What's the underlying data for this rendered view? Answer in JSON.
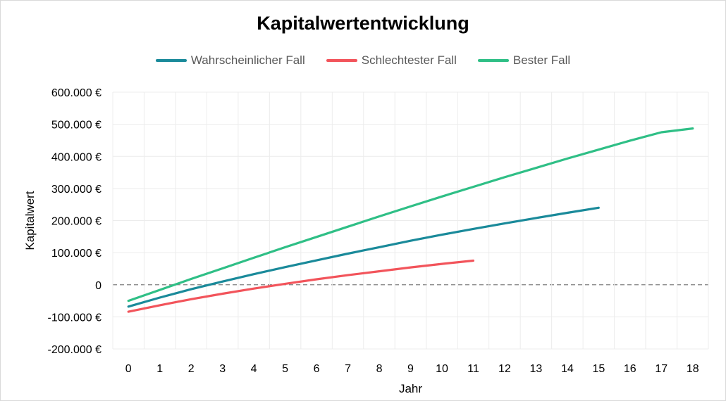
{
  "chart_data": {
    "type": "line",
    "title": "Kapitalwertentwicklung",
    "xlabel": "Jahr",
    "ylabel": "Kapitalwert",
    "xlim": [
      0,
      18
    ],
    "ylim": [
      -200000,
      600000
    ],
    "y_ticks": [
      {
        "value": 600000,
        "label": "600.000 €"
      },
      {
        "value": 500000,
        "label": "500.000 €"
      },
      {
        "value": 400000,
        "label": "400.000 €"
      },
      {
        "value": 300000,
        "label": "300.000 €"
      },
      {
        "value": 200000,
        "label": "200.000 €"
      },
      {
        "value": 100000,
        "label": "100.000 €"
      },
      {
        "value": 0,
        "label": "0"
      },
      {
        "value": -100000,
        "label": "-100.000 €"
      },
      {
        "value": -200000,
        "label": "-200.000 €"
      }
    ],
    "x_ticks": [
      "0",
      "1",
      "2",
      "3",
      "4",
      "5",
      "6",
      "7",
      "8",
      "9",
      "10",
      "11",
      "12",
      "13",
      "14",
      "15",
      "16",
      "17",
      "18"
    ],
    "grid": true,
    "legend_position": "top",
    "zero_line": "dashed",
    "series": [
      {
        "name": "Wahrscheinlicher Fall",
        "color": "#1a8a9a",
        "x": [
          0,
          1,
          2,
          3,
          4,
          5,
          6,
          7,
          8,
          9,
          10,
          11,
          12,
          13,
          14,
          15
        ],
        "values": [
          -68000,
          -40000,
          -14000,
          10000,
          33000,
          55000,
          76000,
          97000,
          117000,
          137000,
          156000,
          174000,
          191000,
          208000,
          224000,
          240000
        ]
      },
      {
        "name": "Schlechtester Fall",
        "color": "#f2545b",
        "x": [
          0,
          1,
          2,
          3,
          4,
          5,
          6,
          7,
          8,
          9,
          10,
          11
        ],
        "values": [
          -84000,
          -64000,
          -45000,
          -28000,
          -12000,
          3000,
          17000,
          30000,
          42000,
          54000,
          65000,
          75000
        ]
      },
      {
        "name": "Bester Fall",
        "color": "#2fbf86",
        "x": [
          0,
          1,
          2,
          3,
          4,
          5,
          6,
          7,
          8,
          9,
          10,
          11,
          12,
          13,
          14,
          15,
          16,
          17,
          18
        ],
        "values": [
          -50000,
          -16000,
          18000,
          51000,
          84000,
          117000,
          149000,
          181000,
          213000,
          244000,
          275000,
          305000,
          335000,
          364000,
          393000,
          421000,
          449000,
          475000,
          487000
        ]
      }
    ]
  }
}
